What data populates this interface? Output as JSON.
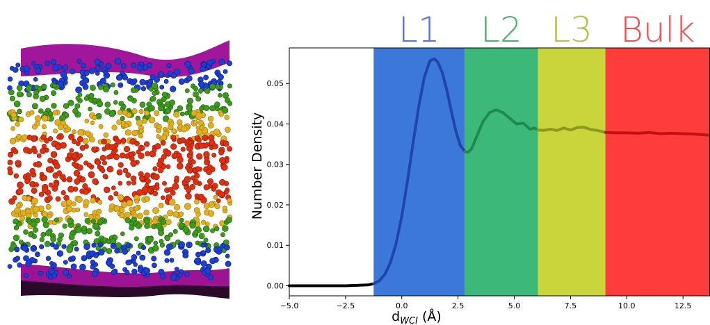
{
  "chart_data": {
    "type": "line",
    "xlabel_main": "d",
    "xlabel_sub": "WCI",
    "xlabel_unit": " (Å)",
    "ylabel": "Number Density",
    "xlim": [
      -5.0,
      13.7
    ],
    "ylim": [
      -0.0025,
      0.0588
    ],
    "xticks": [
      "−5.0",
      "−2.5",
      "0.0",
      "2.5",
      "5.0",
      "7.5",
      "10.0",
      "12.5"
    ],
    "xtick_values": [
      -5.0,
      -2.5,
      0.0,
      2.5,
      5.0,
      7.5,
      10.0,
      12.5
    ],
    "yticks": [
      "0.00",
      "0.01",
      "0.02",
      "0.03",
      "0.04",
      "0.05"
    ],
    "ytick_values": [
      0.0,
      0.01,
      0.02,
      0.03,
      0.04,
      0.05
    ],
    "regions": [
      {
        "name": "L1",
        "x0": -1.25,
        "x1": 2.8,
        "fill": "#3c78d8",
        "line": "#2045a8",
        "label_color": "#5b73d6"
      },
      {
        "name": "L2",
        "x0": 2.8,
        "x1": 6.05,
        "fill": "#3cb878",
        "line": "#1f8a4c",
        "label_color": "#4fb36f"
      },
      {
        "name": "L3",
        "x0": 6.05,
        "x1": 9.05,
        "fill": "#c9d53a",
        "line": "#8a9a1c",
        "label_color": "#b9bf48"
      },
      {
        "name": "Bulk",
        "x0": 9.05,
        "x1": 13.7,
        "fill": "#ff3c3c",
        "line": "#c41010",
        "label_color": "#f05050"
      }
    ],
    "series": [
      {
        "x": [
          -5.0,
          -4.5,
          -4.0,
          -3.5,
          -3.0,
          -2.5,
          -2.0,
          -1.5,
          -1.25,
          -1.0,
          -0.75,
          -0.5,
          -0.25,
          0.0,
          0.25,
          0.5,
          0.75,
          1.0,
          1.25,
          1.45,
          1.6,
          1.8,
          2.0,
          2.2,
          2.4,
          2.6,
          2.8,
          2.95,
          3.1,
          3.3,
          3.6,
          3.9,
          4.2,
          4.5,
          4.8,
          5.1,
          5.4,
          5.7,
          5.9,
          6.05,
          6.3,
          6.6,
          6.9,
          7.2,
          7.5,
          7.8,
          8.1,
          8.4,
          8.7,
          9.05,
          9.5,
          10.0,
          10.5,
          11.0,
          11.5,
          12.0,
          12.5,
          13.0,
          13.7
        ],
        "y": [
          0.0,
          0.0,
          0.0,
          0.0,
          0.0,
          0.0,
          0.0001,
          0.0002,
          0.0005,
          0.0012,
          0.0028,
          0.0058,
          0.0105,
          0.0172,
          0.0258,
          0.0352,
          0.0442,
          0.0515,
          0.0556,
          0.0561,
          0.0553,
          0.0527,
          0.0484,
          0.0432,
          0.0383,
          0.0347,
          0.0332,
          0.033,
          0.0338,
          0.0365,
          0.0405,
          0.0428,
          0.0435,
          0.0428,
          0.0414,
          0.04,
          0.0402,
          0.0387,
          0.039,
          0.0385,
          0.0384,
          0.0387,
          0.0384,
          0.039,
          0.0385,
          0.0391,
          0.0392,
          0.0386,
          0.0384,
          0.0379,
          0.0378,
          0.0378,
          0.0377,
          0.0379,
          0.0376,
          0.0377,
          0.0376,
          0.0375,
          0.0372
        ]
      }
    ]
  }
}
